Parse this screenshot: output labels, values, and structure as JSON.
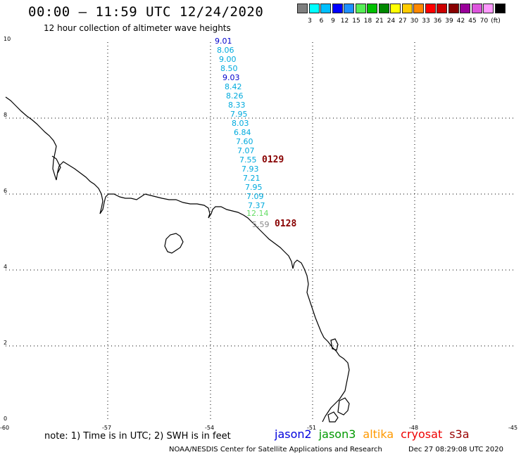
{
  "header": {
    "title": "00:00 – 11:59 UTC 12/24/2020",
    "subtitle": "12 hour collection of altimeter wave heights"
  },
  "colorbar": {
    "colors": [
      "#7f7f7f",
      "#00ffff",
      "#00bfff",
      "#0000ff",
      "#1e90ff",
      "#55ee55",
      "#00c000",
      "#008800",
      "#ffff00",
      "#ffcc00",
      "#ff8800",
      "#ff0000",
      "#cc0000",
      "#880000",
      "#990099",
      "#dd55dd",
      "#ff99ff",
      "#000000"
    ],
    "labels": [
      "3",
      "6",
      "9",
      "12",
      "15",
      "18",
      "21",
      "24",
      "27",
      "30",
      "33",
      "36",
      "39",
      "42",
      "45",
      "70",
      "(ft)"
    ]
  },
  "axes": {
    "x_ticks": [
      "-60",
      "-57",
      "-54",
      "-51",
      "-48",
      "-45"
    ],
    "y_ticks": [
      "0",
      "2",
      "4",
      "6",
      "8",
      "10"
    ]
  },
  "wave_readings": [
    {
      "text": "9.01",
      "color": "#0000cc"
    },
    {
      "text": "8.06",
      "color": "#00aadd"
    },
    {
      "text": "9.00",
      "color": "#00aadd"
    },
    {
      "text": "8.50",
      "color": "#00aadd"
    },
    {
      "text": "9.03",
      "color": "#0000cc"
    },
    {
      "text": "8.42",
      "color": "#00aadd"
    },
    {
      "text": "8.26",
      "color": "#00aadd"
    },
    {
      "text": "8.33",
      "color": "#00aadd"
    },
    {
      "text": "7.95",
      "color": "#00aadd"
    },
    {
      "text": "8.03",
      "color": "#00aadd"
    },
    {
      "text": "6.84",
      "color": "#00aadd"
    },
    {
      "text": "7.60",
      "color": "#00aadd"
    },
    {
      "text": "7.07",
      "color": "#00aadd"
    },
    {
      "text": "7.55",
      "color": "#00aadd"
    },
    {
      "text": "7.93",
      "color": "#00aadd"
    },
    {
      "text": "7.21",
      "color": "#00aadd"
    },
    {
      "text": "7.95",
      "color": "#00aadd"
    },
    {
      "text": "7.09",
      "color": "#00aadd"
    },
    {
      "text": "7.37",
      "color": "#00aadd"
    },
    {
      "text": "12.14",
      "color": "#66dd66"
    },
    {
      "text": "5.59",
      "color": "#888888"
    }
  ],
  "time_labels": [
    {
      "text": "0129",
      "color": "#880000"
    },
    {
      "text": "0128",
      "color": "#880000"
    }
  ],
  "footer": {
    "note": "note: 1) Time is in UTC; 2) SWH is in feet",
    "satellites": [
      {
        "name": "jason2",
        "color": "#0000dd"
      },
      {
        "name": "jason3",
        "color": "#009900"
      },
      {
        "name": "altika",
        "color": "#ff9900"
      },
      {
        "name": "cryosat",
        "color": "#ee0000"
      },
      {
        "name": "s3a",
        "color": "#990000"
      }
    ],
    "credit": "NOAA/NESDIS Center for Satellite Applications and Research",
    "timestamp": "Dec 27 08:29:08 UTC 2020"
  }
}
